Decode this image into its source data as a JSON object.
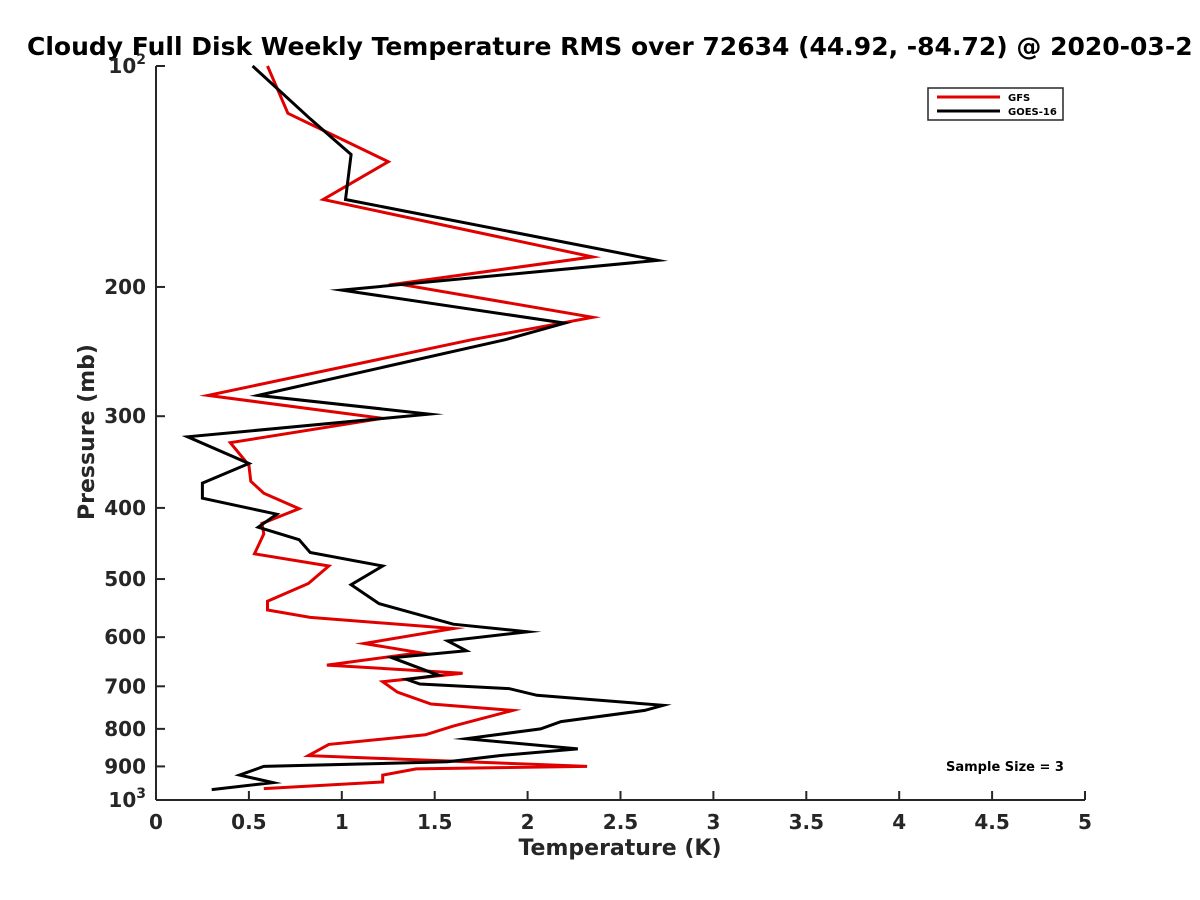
{
  "chart_data": {
    "type": "line",
    "title": "Cloudy Full Disk Weekly Temperature RMS over 72634 (44.92, -84.72) @ 2020-03-2",
    "xlabel": "Temperature (K)",
    "ylabel": "Pressure (mb)",
    "xlim": [
      0,
      5
    ],
    "ylim": [
      1000,
      100
    ],
    "yscale": "log",
    "y_reversed": true,
    "xticks": [
      0,
      0.5,
      1,
      1.5,
      2,
      2.5,
      3,
      3.5,
      4,
      4.5,
      5
    ],
    "xtick_labels": [
      "0",
      "0.5",
      "1",
      "1.5",
      "2",
      "2.5",
      "3",
      "3.5",
      "4",
      "4.5",
      "5"
    ],
    "yticks": [
      {
        "value": 100,
        "base": "10",
        "exp": "2"
      },
      {
        "value": 200,
        "label": "200"
      },
      {
        "value": 300,
        "label": "300"
      },
      {
        "value": 400,
        "label": "400"
      },
      {
        "value": 500,
        "label": "500"
      },
      {
        "value": 600,
        "label": "600"
      },
      {
        "value": 700,
        "label": "700"
      },
      {
        "value": 800,
        "label": "800"
      },
      {
        "value": 900,
        "label": "900"
      },
      {
        "value": 1000,
        "base": "10",
        "exp": "3"
      }
    ],
    "grid": false,
    "legend_position": "top-right",
    "annotation": "Sample Size = 3",
    "series": [
      {
        "name": "GFS",
        "color": "#e00000",
        "points": [
          [
            0.6,
            100
          ],
          [
            0.71,
            116
          ],
          [
            1.25,
            135
          ],
          [
            0.9,
            152
          ],
          [
            2.35,
            182
          ],
          [
            1.3,
            198
          ],
          [
            2.35,
            220
          ],
          [
            1.7,
            236
          ],
          [
            0.28,
            281
          ],
          [
            1.22,
            302
          ],
          [
            0.4,
            326
          ],
          [
            0.5,
            350
          ],
          [
            0.51,
            368
          ],
          [
            0.58,
            382
          ],
          [
            0.77,
            401
          ],
          [
            0.57,
            420
          ],
          [
            0.58,
            434
          ],
          [
            0.53,
            462
          ],
          [
            0.93,
            480
          ],
          [
            0.82,
            507
          ],
          [
            0.6,
            536
          ],
          [
            0.6,
            551
          ],
          [
            0.83,
            564
          ],
          [
            1.6,
            584
          ],
          [
            1.12,
            612
          ],
          [
            1.42,
            630
          ],
          [
            0.92,
            655
          ],
          [
            1.65,
            672
          ],
          [
            1.22,
            690
          ],
          [
            1.3,
            713
          ],
          [
            1.48,
            740
          ],
          [
            1.92,
            755
          ],
          [
            1.6,
            793
          ],
          [
            1.45,
            815
          ],
          [
            0.93,
            840
          ],
          [
            0.82,
            870
          ],
          [
            2.32,
            900
          ],
          [
            1.4,
            907
          ],
          [
            1.22,
            925
          ],
          [
            1.22,
            945
          ],
          [
            0.58,
            965
          ]
        ]
      },
      {
        "name": "GOES-16",
        "color": "#000000",
        "points": [
          [
            0.52,
            100
          ],
          [
            0.83,
            118
          ],
          [
            1.05,
            132
          ],
          [
            1.02,
            152
          ],
          [
            2.7,
            184
          ],
          [
            1.0,
            202
          ],
          [
            2.2,
            224
          ],
          [
            1.88,
            236
          ],
          [
            0.55,
            281
          ],
          [
            1.47,
            298
          ],
          [
            0.17,
            320
          ],
          [
            0.5,
            348
          ],
          [
            0.25,
            370
          ],
          [
            0.25,
            388
          ],
          [
            0.65,
            408
          ],
          [
            0.55,
            425
          ],
          [
            0.77,
            442
          ],
          [
            0.83,
            460
          ],
          [
            1.22,
            480
          ],
          [
            1.05,
            509
          ],
          [
            1.2,
            540
          ],
          [
            1.6,
            576
          ],
          [
            2.0,
            590
          ],
          [
            1.57,
            607
          ],
          [
            1.67,
            626
          ],
          [
            1.27,
            640
          ],
          [
            1.52,
            676
          ],
          [
            1.35,
            685
          ],
          [
            1.42,
            695
          ],
          [
            1.9,
            705
          ],
          [
            2.05,
            720
          ],
          [
            2.73,
            743
          ],
          [
            2.63,
            755
          ],
          [
            2.18,
            782
          ],
          [
            2.07,
            800
          ],
          [
            1.67,
            825
          ],
          [
            2.27,
            852
          ],
          [
            1.85,
            870
          ],
          [
            1.57,
            887
          ],
          [
            0.58,
            900
          ],
          [
            0.45,
            925
          ],
          [
            0.63,
            947
          ],
          [
            0.3,
            968
          ]
        ]
      }
    ]
  }
}
